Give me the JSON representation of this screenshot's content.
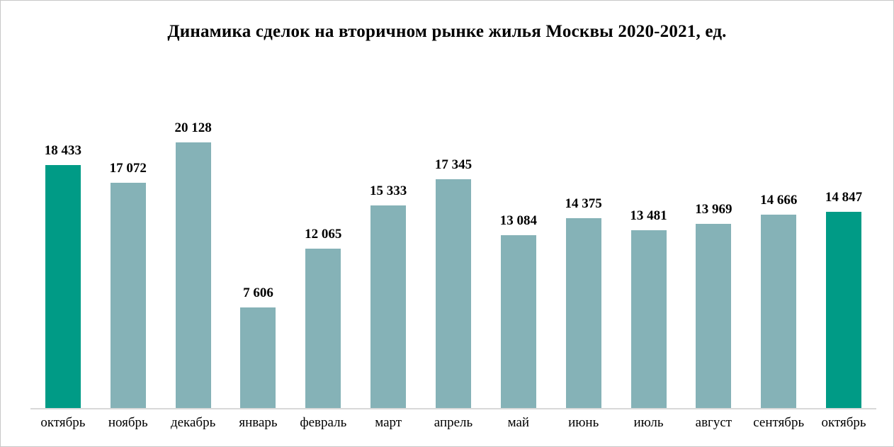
{
  "title": "Динамика сделок на вторичном рынке жилья Москвы 2020-2021, ед.",
  "colors": {
    "bar_default": "#85B2B7",
    "bar_highlight": "#009B86",
    "axis_line": "#D9D9D9",
    "text": "#000000",
    "background": "#FFFFFF",
    "frame_border": "#C8C8C8"
  },
  "chart_data": {
    "type": "bar",
    "title": "Динамика сделок на вторичном рынке жилья Москвы 2020-2021, ед.",
    "categories": [
      "октябрь",
      "ноябрь",
      "декабрь",
      "январь",
      "февраль",
      "март",
      "апрель",
      "май",
      "июнь",
      "июль",
      "август",
      "сентябрь",
      "октябрь"
    ],
    "values": [
      18433,
      17072,
      20128,
      7606,
      12065,
      15333,
      17345,
      13084,
      14375,
      13481,
      13969,
      14666,
      14847
    ],
    "value_labels": [
      "18 433",
      "17 072",
      "20 128",
      "7 606",
      "12 065",
      "15 333",
      "17 345",
      "13 084",
      "14 375",
      "13 481",
      "13 969",
      "14 666",
      "14 847"
    ],
    "highlighted_indices": [
      0,
      12
    ],
    "xlabel": "",
    "ylabel": "",
    "ylim": [
      0,
      20128
    ],
    "grid": false,
    "legend_position": "none",
    "data_labels": true
  }
}
